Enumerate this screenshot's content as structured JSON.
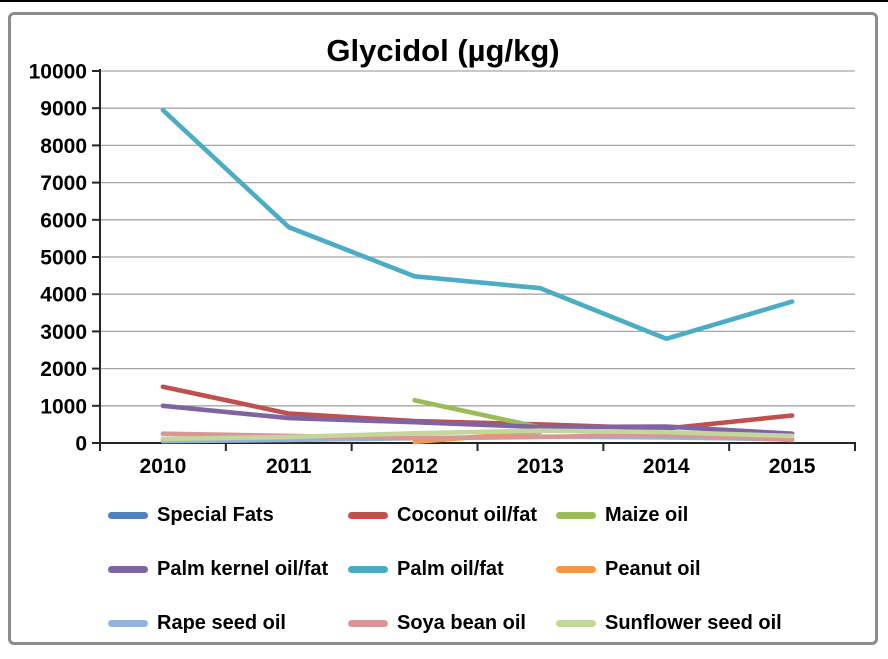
{
  "title": "Glycidol (µg/kg)",
  "chart_data": {
    "type": "line",
    "title": "Glycidol (µg/kg)",
    "categories": [
      "2010",
      "2011",
      "2012",
      "2013",
      "2014",
      "2015"
    ],
    "series": [
      {
        "name": "Special Fats",
        "color": "#4F81BD",
        "values": [
          null,
          null,
          null,
          null,
          null,
          null
        ]
      },
      {
        "name": "Coconut oil/fat",
        "color": "#C0504D",
        "values": [
          1510,
          790,
          590,
          500,
          390,
          740
        ]
      },
      {
        "name": "Maize oil",
        "color": "#9BBB59",
        "values": [
          null,
          null,
          1150,
          420,
          null,
          null
        ]
      },
      {
        "name": "Palm kernel oil/fat",
        "color": "#8064A2",
        "values": [
          1000,
          670,
          560,
          430,
          440,
          250
        ]
      },
      {
        "name": "Palm oil/fat",
        "color": "#4BACC6",
        "values": [
          8950,
          5800,
          4480,
          4160,
          2800,
          3800
        ]
      },
      {
        "name": "Peanut oil",
        "color": "#F79646",
        "values": [
          null,
          null,
          30,
          300,
          null,
          null
        ]
      },
      {
        "name": "Rape seed oil",
        "color": "#95B3D7",
        "values": [
          50,
          80,
          130,
          170,
          150,
          100
        ]
      },
      {
        "name": "Soya bean oil",
        "color": "#D99694",
        "values": [
          250,
          190,
          130,
          160,
          230,
          80
        ]
      },
      {
        "name": "Sunflower seed oil",
        "color": "#C3D69B",
        "values": [
          110,
          160,
          260,
          330,
          290,
          190
        ]
      }
    ],
    "ylim": [
      0,
      10000
    ],
    "ytick_step": 1000,
    "ytick_labels": [
      "0",
      "1000",
      "2000",
      "3000",
      "4000",
      "5000",
      "6000",
      "7000",
      "8000",
      "9000",
      "10000"
    ],
    "grid": true,
    "gridline_color": "#a6a6a6",
    "axis_color": "#262626",
    "legend_position": "bottom",
    "legend_rows": 3,
    "legend_cols": 3
  }
}
